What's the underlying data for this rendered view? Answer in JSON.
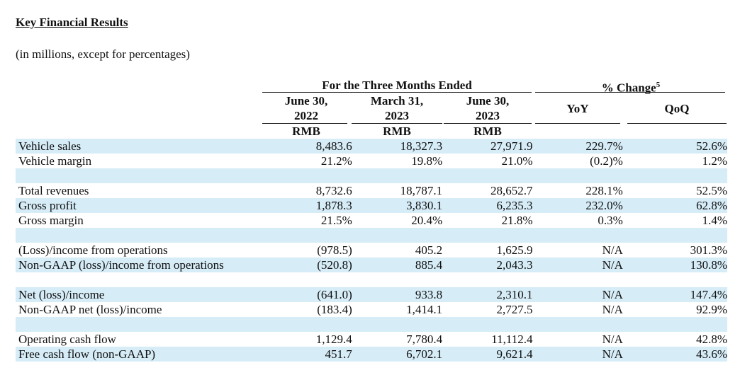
{
  "title": "Key Financial Results",
  "subtitle": "(in millions, except for percentages)",
  "header": {
    "group_period": "For the Three Months Ended",
    "group_change": "% Change",
    "group_change_sup": "5",
    "col1": [
      "June 30,",
      "2022"
    ],
    "col2": [
      "March 31,",
      "2023"
    ],
    "col3": [
      "June 30,",
      "2023"
    ],
    "yoy": "YoY",
    "qoq": "QoQ",
    "currency": "RMB"
  },
  "rows": [
    {
      "label": "Vehicle sales",
      "v1": "8,483.6",
      "v2": "18,327.3",
      "v3": "27,971.9",
      "yoy": "229.7%",
      "qoq": "52.6%",
      "shade": true
    },
    {
      "label": "Vehicle margin",
      "v1": "21.2%",
      "v2": "19.8%",
      "v3": "21.0%",
      "yoy": "(0.2)%",
      "qoq": "1.2%",
      "shade": false
    },
    {
      "label": "",
      "v1": "",
      "v2": "",
      "v3": "",
      "yoy": "",
      "qoq": "",
      "shade": true
    },
    {
      "label": "Total revenues",
      "v1": "8,732.6",
      "v2": "18,787.1",
      "v3": "28,652.7",
      "yoy": "228.1%",
      "qoq": "52.5%",
      "shade": false
    },
    {
      "label": "Gross profit",
      "v1": "1,878.3",
      "v2": "3,830.1",
      "v3": "6,235.3",
      "yoy": "232.0%",
      "qoq": "62.8%",
      "shade": true
    },
    {
      "label": "Gross margin",
      "v1": "21.5%",
      "v2": "20.4%",
      "v3": "21.8%",
      "yoy": "0.3%",
      "qoq": "1.4%",
      "shade": false
    },
    {
      "label": "",
      "v1": "",
      "v2": "",
      "v3": "",
      "yoy": "",
      "qoq": "",
      "shade": true
    },
    {
      "label": "(Loss)/income from operations",
      "v1": "(978.5)",
      "v2": "405.2",
      "v3": "1,625.9",
      "yoy": "N/A",
      "qoq": "301.3%",
      "shade": false
    },
    {
      "label": "Non-GAAP (loss)/income from operations",
      "v1": "(520.8)",
      "v2": "885.4",
      "v3": "2,043.3",
      "yoy": "N/A",
      "qoq": "130.8%",
      "shade": true
    },
    {
      "label": "",
      "v1": "",
      "v2": "",
      "v3": "",
      "yoy": "",
      "qoq": "",
      "shade": false
    },
    {
      "label": "Net (loss)/income",
      "v1": "(641.0)",
      "v2": "933.8",
      "v3": "2,310.1",
      "yoy": "N/A",
      "qoq": "147.4%",
      "shade": true
    },
    {
      "label": "Non-GAAP net (loss)/income",
      "v1": "(183.4)",
      "v2": "1,414.1",
      "v3": "2,727.5",
      "yoy": "N/A",
      "qoq": "92.9%",
      "shade": false
    },
    {
      "label": "",
      "v1": "",
      "v2": "",
      "v3": "",
      "yoy": "",
      "qoq": "",
      "shade": true
    },
    {
      "label": "Operating cash flow",
      "v1": "1,129.4",
      "v2": "7,780.4",
      "v3": "11,112.4",
      "yoy": "N/A",
      "qoq": "42.8%",
      "shade": false
    },
    {
      "label": "Free cash flow (non-GAAP)",
      "v1": "451.7",
      "v2": "6,702.1",
      "v3": "9,621.4",
      "yoy": "N/A",
      "qoq": "43.6%",
      "shade": true
    }
  ]
}
